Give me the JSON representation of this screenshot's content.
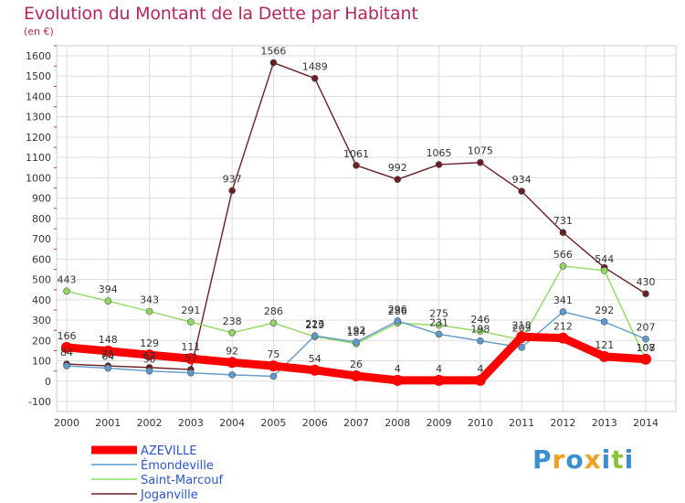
{
  "chart_data": {
    "type": "line",
    "title": "Evolution du Montant de la Dette par Habitant",
    "unit_label": "(en €)",
    "x": [
      "2000",
      "2001",
      "2002",
      "2003",
      "2004",
      "2005",
      "2006",
      "2007",
      "2008",
      "2009",
      "2010",
      "2011",
      "2012",
      "2013",
      "2014"
    ],
    "ylim": [
      -100,
      1600
    ],
    "yticks": [
      "-100",
      "0",
      "100",
      "200",
      "300",
      "400",
      "500",
      "600",
      "700",
      "800",
      "900",
      "1000",
      "1100",
      "1200",
      "1300",
      "1400",
      "1500",
      "1600"
    ],
    "grid": true,
    "legend_position": "bottom-left",
    "series": [
      {
        "name": "Joganville",
        "color": "#6b1e24",
        "values": [
          84,
          75,
          67,
          57,
          937,
          1566,
          1489,
          1061,
          992,
          1065,
          1075,
          934,
          731,
          559,
          430
        ],
        "labels": [
          "84",
          "75",
          "67",
          "57",
          "937",
          "1566",
          "1489",
          "1061",
          "992",
          "1065",
          "1075",
          "934",
          "731",
          "",
          "430"
        ]
      },
      {
        "name": "Saint-Marcouf",
        "color": "#90d860",
        "values": [
          443,
          394,
          343,
          291,
          238,
          286,
          219,
          184,
          286,
          275,
          246,
          203,
          566,
          544,
          107
        ],
        "labels": [
          "443",
          "394",
          "343",
          "291",
          "238",
          "286",
          "219",
          "184",
          "286",
          "275",
          "246",
          "203",
          "566",
          "544",
          "107"
        ]
      },
      {
        "name": "Émondeville",
        "color": "#5e9acb",
        "values": [
          75,
          64,
          50,
          41,
          31,
          24,
          223,
          192,
          296,
          231,
          198,
          166,
          341,
          292,
          207
        ],
        "labels": [
          "",
          "64",
          "50",
          "",
          "",
          "",
          "223",
          "192",
          "296",
          "231",
          "198",
          "",
          "341",
          "292",
          "207"
        ]
      },
      {
        "name": "AZEVILLE",
        "color": "#ff0000",
        "values": [
          166,
          148,
          129,
          111,
          92,
          75,
          54,
          26,
          4,
          4,
          4,
          218,
          212,
          121,
          108
        ],
        "labels": [
          "166",
          "148",
          "129",
          "111",
          "92",
          "75",
          "54",
          "26",
          "4",
          "4",
          "4",
          "218",
          "212",
          "121",
          "108"
        ]
      }
    ]
  },
  "legend": {
    "items": [
      {
        "name": "AZEVILLE",
        "color": "#ff0000"
      },
      {
        "name": "Émondeville",
        "color": "#5e9acb"
      },
      {
        "name": "Saint-Marcouf",
        "color": "#90d860"
      },
      {
        "name": "Joganville",
        "color": "#6b1e24"
      }
    ]
  },
  "logo": {
    "letters": [
      "P",
      "r",
      "o",
      "x",
      "i",
      "t",
      "i"
    ],
    "colors": [
      "#3a8fd0",
      "#f0a020",
      "#3a8fd0",
      "#f0a020",
      "#3a8fd0",
      "#8cc43c",
      "#3a8fd0"
    ]
  }
}
